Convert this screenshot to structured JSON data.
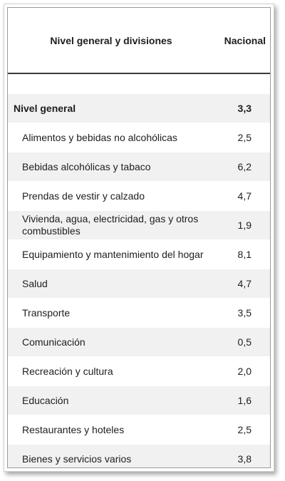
{
  "chart_data": {
    "type": "table",
    "columns": [
      "Nivel general y divisiones",
      "Nacional"
    ],
    "total": {
      "label": "Nivel general",
      "value": "3,3"
    },
    "rows": [
      {
        "label": "Alimentos y bebidas no alcohólicas",
        "value": "2,5"
      },
      {
        "label": "Bebidas alcohólicas y tabaco",
        "value": "6,2"
      },
      {
        "label": "Prendas de vestir y calzado",
        "value": "4,7"
      },
      {
        "label": "Vivienda, agua, electricidad, gas y otros combustibles",
        "value": "1,9"
      },
      {
        "label": "Equipamiento y mantenimiento del hogar",
        "value": "8,1"
      },
      {
        "label": "Salud",
        "value": "4,7"
      },
      {
        "label": "Transporte",
        "value": "3,5"
      },
      {
        "label": "Comunicación",
        "value": "0,5"
      },
      {
        "label": "Recreación y cultura",
        "value": "2,0"
      },
      {
        "label": "Educación",
        "value": "1,6"
      },
      {
        "label": "Restaurantes y hoteles",
        "value": "2,5"
      },
      {
        "label": "Bienes y servicios varios",
        "value": "3,8"
      }
    ]
  }
}
